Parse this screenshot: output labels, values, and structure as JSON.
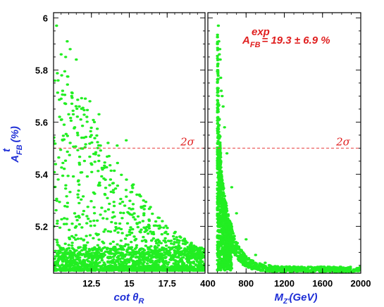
{
  "colors": {
    "points": "#22ee22",
    "sigma_line": "#e84040",
    "axis_text": "#1f2fd6",
    "annotation": "#e02020"
  },
  "y_axis": {
    "label_main": "A",
    "label_sup": "t",
    "label_sub": "FB",
    "label_unit": "(%)",
    "ylim": [
      5.02,
      6.02
    ],
    "tick_labels": [
      "6",
      "5.8",
      "5.6",
      "5.4",
      "5.2"
    ]
  },
  "annotation": {
    "main": "A",
    "sup": "exp",
    "sub": "FB",
    "rest": "= 19.3  ± 6.9 %"
  },
  "sigma_label": "2σ",
  "chart_data": [
    {
      "type": "scatter",
      "panel": "left",
      "xlabel_main": "cot θ",
      "xlabel_sub": "R",
      "xlim": [
        10,
        20
      ],
      "ylim": [
        5.02,
        6.02
      ],
      "x_tick_labels": [
        "12.5",
        "15",
        "17.5"
      ],
      "x_ticks": [
        12.5,
        15,
        17.5
      ],
      "hline": 5.5,
      "hline_label": "2σ",
      "points": [
        [
          10.2,
          5.97
        ],
        [
          10.5,
          5.86
        ],
        [
          10.8,
          5.85
        ],
        [
          11.1,
          5.88
        ],
        [
          11.5,
          5.84
        ],
        [
          10.9,
          5.91
        ],
        [
          10.3,
          5.76
        ],
        [
          10.6,
          5.72
        ],
        [
          10.8,
          5.67
        ],
        [
          11.2,
          5.7
        ],
        [
          11.7,
          5.66
        ],
        [
          12.1,
          5.69
        ],
        [
          12.4,
          5.68
        ],
        [
          10.4,
          5.62
        ],
        [
          10.7,
          5.59
        ],
        [
          11.0,
          5.63
        ],
        [
          11.4,
          5.58
        ],
        [
          11.8,
          5.61
        ],
        [
          12.2,
          5.62
        ],
        [
          12.7,
          5.6
        ],
        [
          13.0,
          5.63
        ],
        [
          10.6,
          5.53
        ],
        [
          11.1,
          5.52
        ],
        [
          11.6,
          5.55
        ],
        [
          12.0,
          5.54
        ],
        [
          12.5,
          5.55
        ],
        [
          13.1,
          5.51
        ],
        [
          13.6,
          5.52
        ],
        [
          14.2,
          5.51
        ],
        [
          14.8,
          5.53
        ]
      ],
      "distribution_note": "dense band near 5.03-5.10, sparse points decreasing in upper bound with increasing cot theta"
    },
    {
      "type": "scatter",
      "panel": "right",
      "xlabel_main": "M",
      "xlabel_sub": "Z'",
      "xlabel_rest": "(GeV)",
      "xlim": [
        400,
        2000
      ],
      "ylim": [
        5.02,
        6.02
      ],
      "x_tick_labels": [
        "400",
        "800",
        "1200",
        "1600",
        "2000"
      ],
      "x_ticks": [
        400,
        800,
        1200,
        1600,
        2000
      ],
      "hline": 5.5,
      "hline_label": "2σ",
      "points": [
        [
          510,
          5.97
        ],
        [
          515,
          5.91
        ],
        [
          520,
          5.86
        ],
        [
          525,
          5.88
        ],
        [
          530,
          5.84
        ],
        [
          535,
          5.77
        ],
        [
          540,
          5.72
        ],
        [
          550,
          5.7
        ],
        [
          560,
          5.66
        ],
        [
          575,
          5.58
        ],
        [
          600,
          5.48
        ],
        [
          650,
          5.35
        ],
        [
          700,
          5.25
        ],
        [
          800,
          5.15
        ],
        [
          900,
          5.09
        ],
        [
          1000,
          5.06
        ],
        [
          1200,
          5.04
        ],
        [
          1400,
          5.035
        ],
        [
          1600,
          5.033
        ],
        [
          1800,
          5.032
        ],
        [
          2000,
          5.031
        ]
      ],
      "distribution_note": "points concentrated near M=500-600 GeV spanning 5.03-5.97, decaying toward ~5.03 as M increases"
    }
  ]
}
